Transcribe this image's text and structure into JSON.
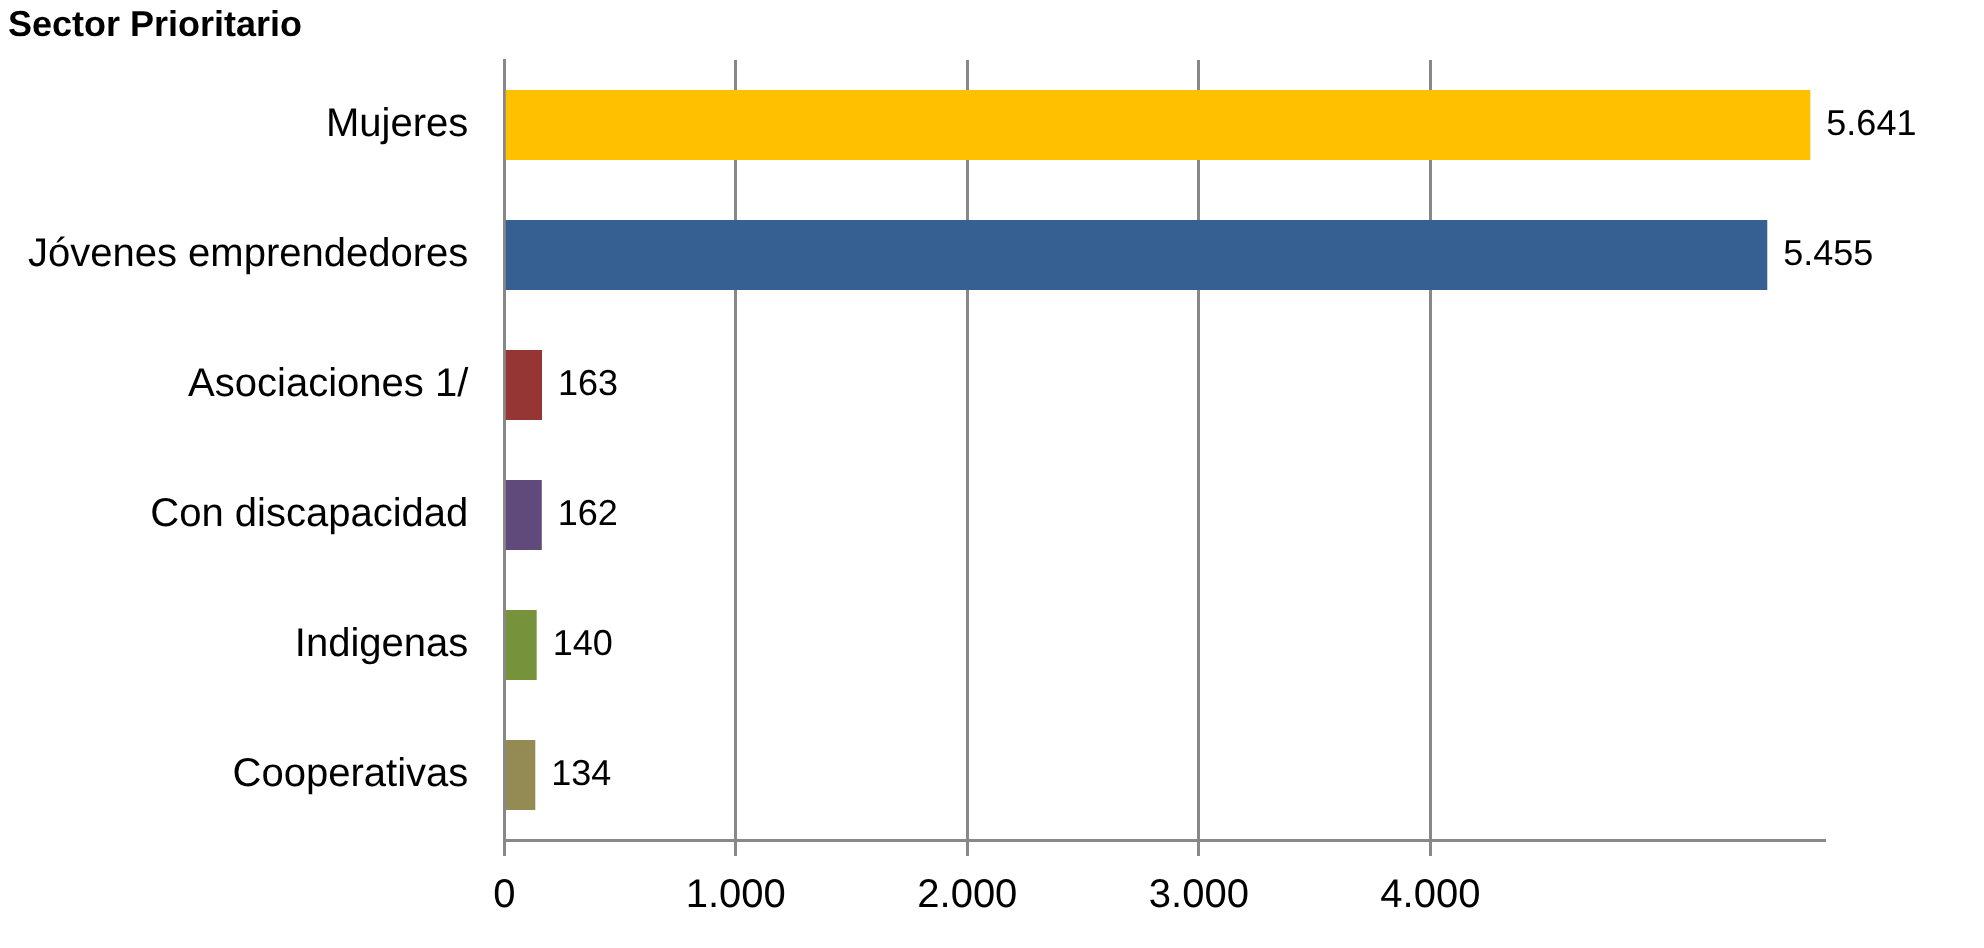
{
  "chart_data": {
    "type": "bar",
    "orientation": "horizontal",
    "title": "Sector Prioritario",
    "categories": [
      "Mujeres",
      "Jóvenes emprendedores",
      "Asociaciones 1/",
      "Con discapacidad",
      "Indigenas",
      "Cooperativas"
    ],
    "values": [
      5641,
      5455,
      163,
      162,
      140,
      134
    ],
    "colors": [
      "#ffc000",
      "#366092",
      "#963634",
      "#604a7b",
      "#76933c",
      "#948a54"
    ],
    "value_labels": [
      "5.641",
      "5.455",
      "163",
      "162",
      "140",
      "134"
    ],
    "xlim": [
      0,
      5700
    ],
    "xticks": [
      0,
      {
        "value": 1000,
        "label": "1.000"
      },
      {
        "value": 2000,
        "label": "2.000"
      },
      {
        "value": 3000,
        "label": "3.000"
      },
      {
        "value": 4000,
        "label": "4.000"
      }
    ],
    "grid": "x",
    "legend": false
  }
}
